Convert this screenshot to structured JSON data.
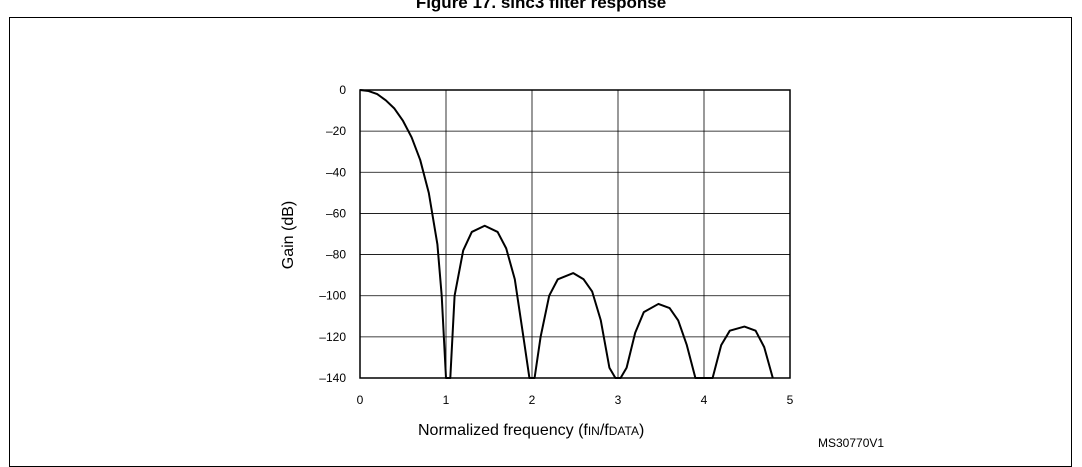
{
  "figure": {
    "title": "Figure 17. sinc3 filter response",
    "code": "MS30770V1"
  },
  "chart_data": {
    "type": "line",
    "xlabel": "Normalized frequency",
    "xlabel_main": "Normalized frequency (f",
    "xlabel_sub1": "IN",
    "xlabel_mid": "/f",
    "xlabel_sub2": "DATA",
    "xlabel_end": ")",
    "ylabel": "Gain (dB)",
    "xlim": [
      0,
      5
    ],
    "ylim": [
      -140,
      0
    ],
    "x_ticks": [
      0,
      1,
      2,
      3,
      4,
      5
    ],
    "y_ticks": [
      0,
      -20,
      -40,
      -60,
      -80,
      -100,
      -120,
      -140
    ],
    "x_tick_labels": [
      "0",
      "1",
      "2",
      "3",
      "4",
      "5"
    ],
    "y_tick_labels": [
      "0",
      "–20",
      "–40",
      "–60",
      "–80",
      "–100",
      "–120",
      "–140"
    ],
    "grid": true,
    "series": [
      {
        "x": [
          0.0,
          0.1,
          0.2,
          0.3,
          0.4,
          0.5,
          0.6,
          0.7,
          0.8,
          0.9,
          0.95,
          1.0,
          1.05,
          1.1,
          1.2,
          1.3,
          1.45,
          1.6,
          1.7,
          1.8,
          1.9,
          1.97,
          2.0,
          2.03,
          2.1,
          2.2,
          2.3,
          2.48,
          2.6,
          2.7,
          2.8,
          2.9,
          2.97,
          3.0,
          3.03,
          3.1,
          3.2,
          3.3,
          3.47,
          3.6,
          3.7,
          3.8,
          3.9,
          3.97,
          4.0,
          4.03,
          4.1,
          4.2,
          4.3,
          4.47,
          4.6,
          4.7,
          4.8
        ],
        "y": [
          0,
          -0.5,
          -2,
          -5,
          -9,
          -15,
          -23,
          -34,
          -50,
          -75,
          -100,
          -140,
          -140,
          -100,
          -78,
          -69,
          -66,
          -69,
          -77,
          -92,
          -120,
          -140,
          -140,
          -140,
          -120,
          -100,
          -92,
          -89,
          -92,
          -98,
          -112,
          -135,
          -140,
          -140,
          -140,
          -135,
          -118,
          -108,
          -104,
          -106,
          -112,
          -124,
          -140,
          -140,
          -140,
          -140,
          -140,
          -124,
          -117,
          -115,
          -117,
          -125,
          -140
        ]
      }
    ]
  }
}
